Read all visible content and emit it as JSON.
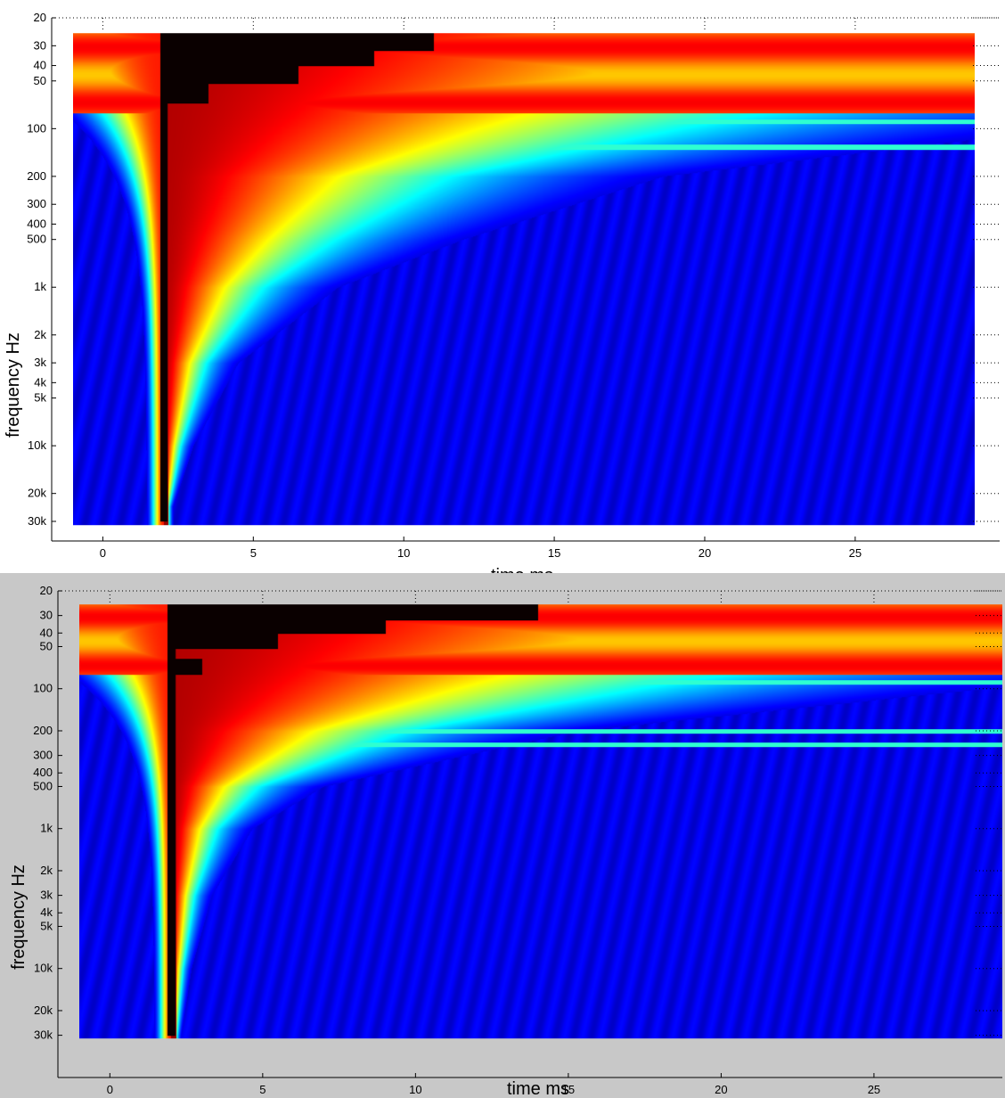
{
  "chart_data": [
    {
      "type": "heatmap",
      "title": "",
      "xlabel": "time   ms",
      "ylabel": "frequency   Hz",
      "x_ticks": [
        0,
        5,
        10,
        15,
        20,
        25
      ],
      "x_tick_labels": [
        "0",
        "5",
        "10",
        "15",
        "20",
        "25"
      ],
      "y_ticks": [
        20,
        30,
        40,
        50,
        100,
        200,
        300,
        400,
        500,
        1000,
        2000,
        3000,
        4000,
        5000,
        10000,
        20000,
        30000
      ],
      "y_tick_labels": [
        "20",
        "30",
        "40",
        "50",
        "100",
        "200",
        "300",
        "400",
        "500",
        "1k",
        "2k",
        "3k",
        "4k",
        "5k",
        "10k",
        "20k",
        "30k"
      ],
      "y_scale": "log",
      "xlim": [
        -1.7,
        29.8
      ],
      "ylim": [
        20,
        32000
      ],
      "data_extent": {
        "t": [
          -1,
          29
        ],
        "f": [
          25,
          31500
        ]
      },
      "grid": "dotted ticks at right and top",
      "colormap": "jet",
      "onset_time_ms": 2.0,
      "low_frequency_ridge": [
        {
          "f": 60,
          "t": 3.5
        },
        {
          "f": 45,
          "t": 6.5
        },
        {
          "f": 35,
          "t": 9.0
        },
        {
          "f": 28,
          "t": 11.0
        }
      ],
      "resonance_bands_hz": [
        60,
        75,
        90,
        130
      ],
      "cutoff_curve_ms": [
        {
          "f": 100,
          "t": 20
        },
        {
          "f": 200,
          "t": 12
        },
        {
          "f": 500,
          "t": 8
        },
        {
          "f": 1000,
          "t": 5.5
        },
        {
          "f": 3000,
          "t": 3.5
        },
        {
          "f": 10000,
          "t": 2.6
        },
        {
          "f": 30000,
          "t": 2.1
        }
      ]
    },
    {
      "type": "heatmap",
      "title": "",
      "xlabel": "time   ms",
      "ylabel": "frequency   Hz",
      "x_ticks": [
        0,
        5,
        10,
        15,
        20,
        25
      ],
      "x_tick_labels": [
        "0",
        "5",
        "10",
        "15",
        "20",
        "25"
      ],
      "y_ticks": [
        20,
        30,
        40,
        50,
        100,
        200,
        300,
        400,
        500,
        1000,
        2000,
        3000,
        4000,
        5000,
        10000,
        20000,
        30000
      ],
      "y_tick_labels": [
        "20",
        "30",
        "40",
        "50",
        "100",
        "200",
        "300",
        "400",
        "500",
        "1k",
        "2k",
        "3k",
        "4k",
        "5k",
        "10k",
        "20k",
        "30k"
      ],
      "y_scale": "log",
      "xlim": [
        -1.7,
        29.2
      ],
      "ylim": [
        20,
        32000
      ],
      "data_extent": {
        "t": [
          -1,
          29.2
        ],
        "f": [
          25,
          31500
        ]
      },
      "grid": "dotted ticks at right and top",
      "colormap": "jet",
      "onset_time_ms": 2.0,
      "low_frequency_ridge": [
        {
          "f": 70,
          "t": 3.0
        },
        {
          "f": 45,
          "t": 5.5
        },
        {
          "f": 35,
          "t": 9.0
        },
        {
          "f": 28,
          "t": 14.0
        }
      ],
      "resonance_bands_hz": [
        40,
        60,
        90,
        200,
        250
      ],
      "cutoff_curve_ms": [
        {
          "f": 100,
          "t": 18
        },
        {
          "f": 200,
          "t": 10
        },
        {
          "f": 500,
          "t": 5
        },
        {
          "f": 1000,
          "t": 3.6
        },
        {
          "f": 3000,
          "t": 2.8
        },
        {
          "f": 10000,
          "t": 2.4
        },
        {
          "f": 30000,
          "t": 2.2
        }
      ]
    }
  ]
}
